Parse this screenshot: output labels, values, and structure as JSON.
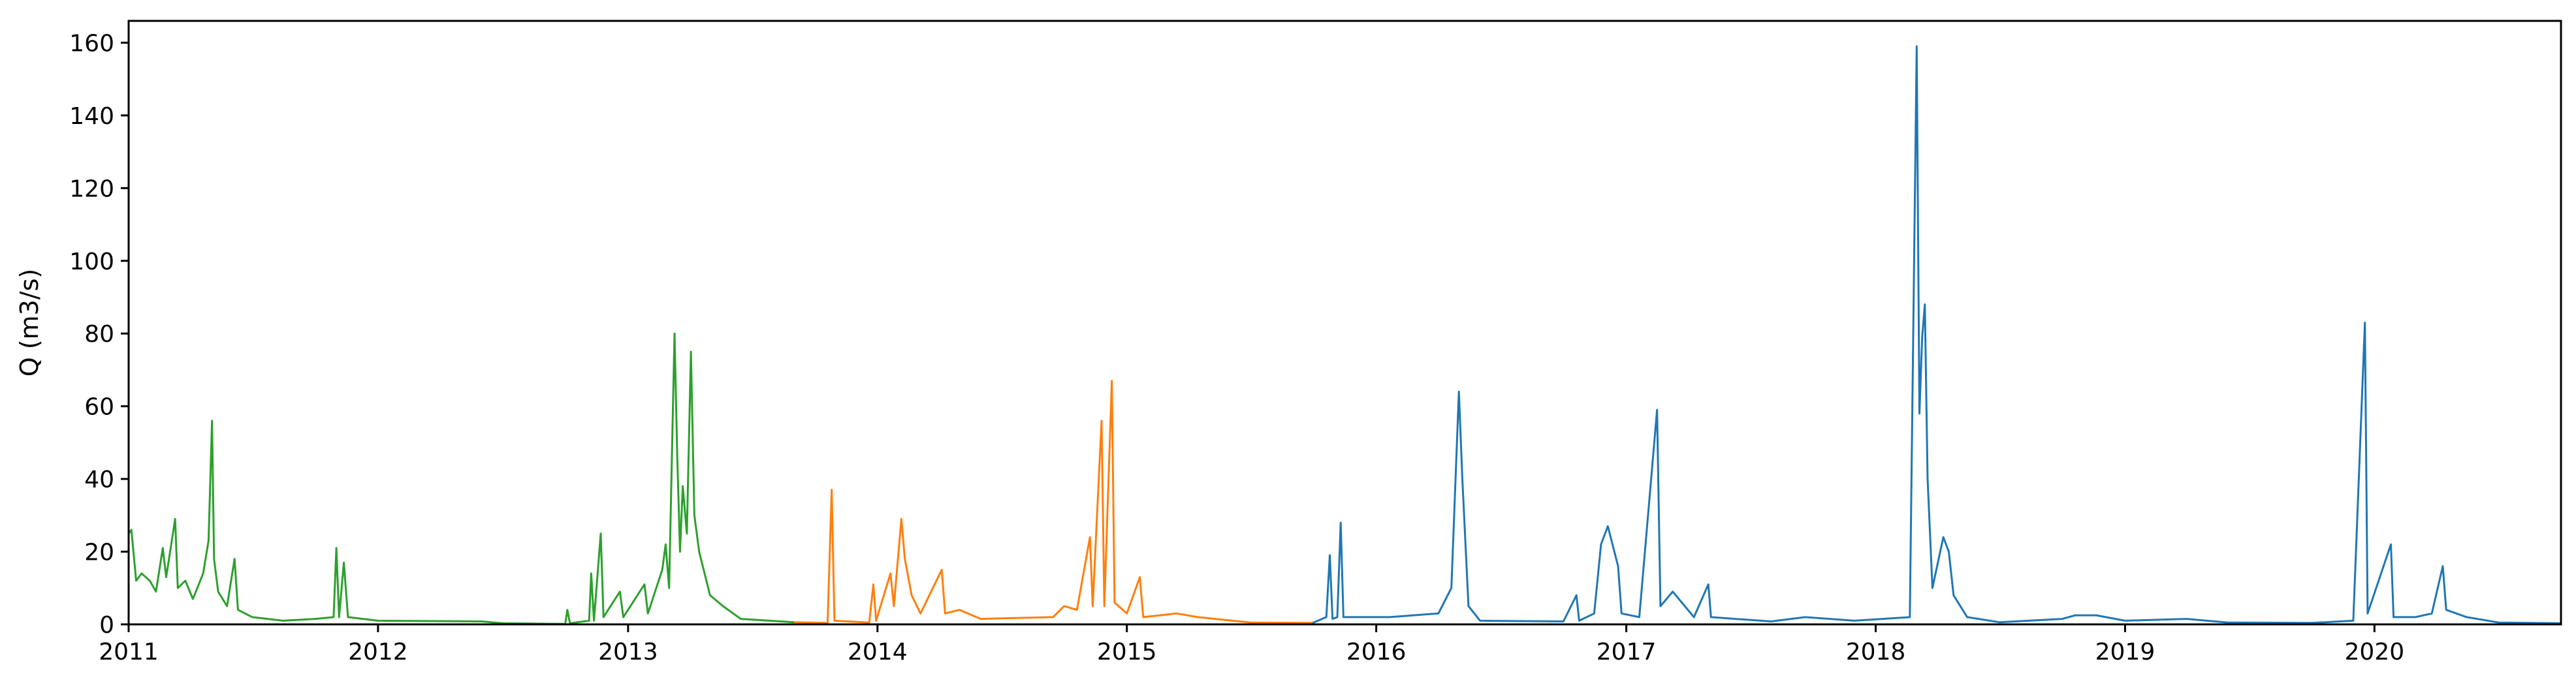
{
  "chart_data": {
    "type": "line",
    "title": "",
    "xlabel": "",
    "ylabel": "Q (m3/s)",
    "xlim": [
      "2011-01-01",
      "2020-09-30"
    ],
    "ylim": [
      0,
      166
    ],
    "x_ticks": [
      "2011",
      "2012",
      "2013",
      "2014",
      "2015",
      "2016",
      "2017",
      "2018",
      "2019",
      "2020"
    ],
    "y_ticks": [
      0,
      20,
      40,
      60,
      80,
      100,
      120,
      140,
      160
    ],
    "grid": false,
    "legend": "none",
    "series": [
      {
        "color": "#2ca02c",
        "points": [
          [
            "2011-01-01",
            25
          ],
          [
            "2011-01-05",
            26
          ],
          [
            "2011-01-12",
            12
          ],
          [
            "2011-01-20",
            14
          ],
          [
            "2011-02-01",
            12
          ],
          [
            "2011-02-10",
            9
          ],
          [
            "2011-02-20",
            21
          ],
          [
            "2011-02-25",
            13
          ],
          [
            "2011-03-10",
            29
          ],
          [
            "2011-03-14",
            10
          ],
          [
            "2011-03-25",
            12
          ],
          [
            "2011-04-05",
            7
          ],
          [
            "2011-04-20",
            14
          ],
          [
            "2011-04-28",
            23
          ],
          [
            "2011-05-03",
            56
          ],
          [
            "2011-05-06",
            18
          ],
          [
            "2011-05-12",
            9
          ],
          [
            "2011-05-25",
            5
          ],
          [
            "2011-06-05",
            18
          ],
          [
            "2011-06-10",
            4
          ],
          [
            "2011-07-01",
            2
          ],
          [
            "2011-08-15",
            1
          ],
          [
            "2011-10-01",
            1.5
          ],
          [
            "2011-10-28",
            2
          ],
          [
            "2011-11-01",
            21
          ],
          [
            "2011-11-05",
            2
          ],
          [
            "2011-11-12",
            17
          ],
          [
            "2011-11-18",
            2
          ],
          [
            "2012-01-01",
            1
          ],
          [
            "2012-06-01",
            0.8
          ],
          [
            "2012-07-01",
            0.3
          ],
          [
            "2012-10-01",
            0.1
          ],
          [
            "2012-10-04",
            4
          ],
          [
            "2012-10-08",
            0.3
          ],
          [
            "2012-11-05",
            1
          ],
          [
            "2012-11-08",
            14
          ],
          [
            "2012-11-12",
            1
          ],
          [
            "2012-11-22",
            25
          ],
          [
            "2012-11-26",
            2
          ],
          [
            "2012-12-20",
            9
          ],
          [
            "2012-12-25",
            2
          ],
          [
            "2013-01-25",
            11
          ],
          [
            "2013-01-30",
            3
          ],
          [
            "2013-02-20",
            15
          ],
          [
            "2013-02-25",
            22
          ],
          [
            "2013-03-02",
            10
          ],
          [
            "2013-03-10",
            80
          ],
          [
            "2013-03-14",
            46
          ],
          [
            "2013-03-18",
            20
          ],
          [
            "2013-03-22",
            38
          ],
          [
            "2013-03-28",
            25
          ],
          [
            "2013-04-03",
            75
          ],
          [
            "2013-04-08",
            30
          ],
          [
            "2013-04-15",
            20
          ],
          [
            "2013-05-01",
            8
          ],
          [
            "2013-05-20",
            5
          ],
          [
            "2013-06-15",
            1.5
          ],
          [
            "2013-09-01",
            0.6
          ]
        ]
      },
      {
        "color": "#ff7f0e",
        "points": [
          [
            "2013-09-01",
            0.6
          ],
          [
            "2013-10-20",
            0.4
          ],
          [
            "2013-10-26",
            37
          ],
          [
            "2013-10-30",
            1
          ],
          [
            "2013-12-20",
            0.5
          ],
          [
            "2013-12-26",
            11
          ],
          [
            "2013-12-30",
            1
          ],
          [
            "2014-01-20",
            14
          ],
          [
            "2014-01-25",
            5
          ],
          [
            "2014-02-05",
            29
          ],
          [
            "2014-02-10",
            18
          ],
          [
            "2014-02-20",
            8
          ],
          [
            "2014-03-05",
            3
          ],
          [
            "2014-04-05",
            15
          ],
          [
            "2014-04-10",
            3
          ],
          [
            "2014-05-01",
            4
          ],
          [
            "2014-06-01",
            1.5
          ],
          [
            "2014-09-15",
            2
          ],
          [
            "2014-10-01",
            5
          ],
          [
            "2014-10-20",
            4
          ],
          [
            "2014-11-08",
            24
          ],
          [
            "2014-11-12",
            5
          ],
          [
            "2014-11-25",
            56
          ],
          [
            "2014-11-29",
            5
          ],
          [
            "2014-12-10",
            67
          ],
          [
            "2014-12-14",
            6
          ],
          [
            "2015-01-01",
            3
          ],
          [
            "2015-01-20",
            13
          ],
          [
            "2015-01-25",
            2
          ],
          [
            "2015-03-15",
            3
          ],
          [
            "2015-04-15",
            2
          ],
          [
            "2015-07-01",
            0.5
          ],
          [
            "2015-09-30",
            0.4
          ]
        ]
      },
      {
        "color": "#1f77b4",
        "points": [
          [
            "2015-09-30",
            0.4
          ],
          [
            "2015-10-20",
            2
          ],
          [
            "2015-10-25",
            19
          ],
          [
            "2015-10-29",
            1.5
          ],
          [
            "2015-11-05",
            2
          ],
          [
            "2015-11-10",
            28
          ],
          [
            "2015-11-14",
            2
          ],
          [
            "2016-01-20",
            2
          ],
          [
            "2016-04-01",
            3
          ],
          [
            "2016-04-20",
            10
          ],
          [
            "2016-05-01",
            64
          ],
          [
            "2016-05-06",
            40
          ],
          [
            "2016-05-15",
            5
          ],
          [
            "2016-06-01",
            1
          ],
          [
            "2016-10-01",
            0.8
          ],
          [
            "2016-10-20",
            8
          ],
          [
            "2016-10-24",
            1
          ],
          [
            "2016-11-15",
            3
          ],
          [
            "2016-11-25",
            22
          ],
          [
            "2016-12-05",
            27
          ],
          [
            "2016-12-20",
            16
          ],
          [
            "2016-12-25",
            3
          ],
          [
            "2017-01-20",
            2
          ],
          [
            "2017-02-15",
            59
          ],
          [
            "2017-02-20",
            5
          ],
          [
            "2017-03-10",
            9
          ],
          [
            "2017-04-10",
            2
          ],
          [
            "2017-05-01",
            11
          ],
          [
            "2017-05-05",
            2
          ],
          [
            "2017-08-01",
            0.8
          ],
          [
            "2017-09-20",
            2
          ],
          [
            "2017-12-01",
            1
          ],
          [
            "2018-02-20",
            2
          ],
          [
            "2018-03-02",
            159
          ],
          [
            "2018-03-06",
            58
          ],
          [
            "2018-03-10",
            79
          ],
          [
            "2018-03-14",
            88
          ],
          [
            "2018-03-18",
            40
          ],
          [
            "2018-03-25",
            10
          ],
          [
            "2018-04-10",
            24
          ],
          [
            "2018-04-18",
            20
          ],
          [
            "2018-04-25",
            8
          ],
          [
            "2018-05-15",
            2
          ],
          [
            "2018-07-01",
            0.6
          ],
          [
            "2018-10-01",
            1.5
          ],
          [
            "2018-10-20",
            2.5
          ],
          [
            "2018-11-20",
            2.5
          ],
          [
            "2019-01-01",
            1
          ],
          [
            "2019-04-01",
            1.5
          ],
          [
            "2019-06-01",
            0.5
          ],
          [
            "2019-10-01",
            0.4
          ],
          [
            "2019-12-01",
            1
          ],
          [
            "2019-12-18",
            83
          ],
          [
            "2019-12-22",
            3
          ],
          [
            "2020-01-25",
            22
          ],
          [
            "2020-01-29",
            2
          ],
          [
            "2020-03-01",
            2
          ],
          [
            "2020-03-25",
            3
          ],
          [
            "2020-04-10",
            16
          ],
          [
            "2020-04-15",
            4
          ],
          [
            "2020-05-15",
            2
          ],
          [
            "2020-07-01",
            0.5
          ],
          [
            "2020-09-30",
            0.3
          ]
        ]
      }
    ]
  }
}
